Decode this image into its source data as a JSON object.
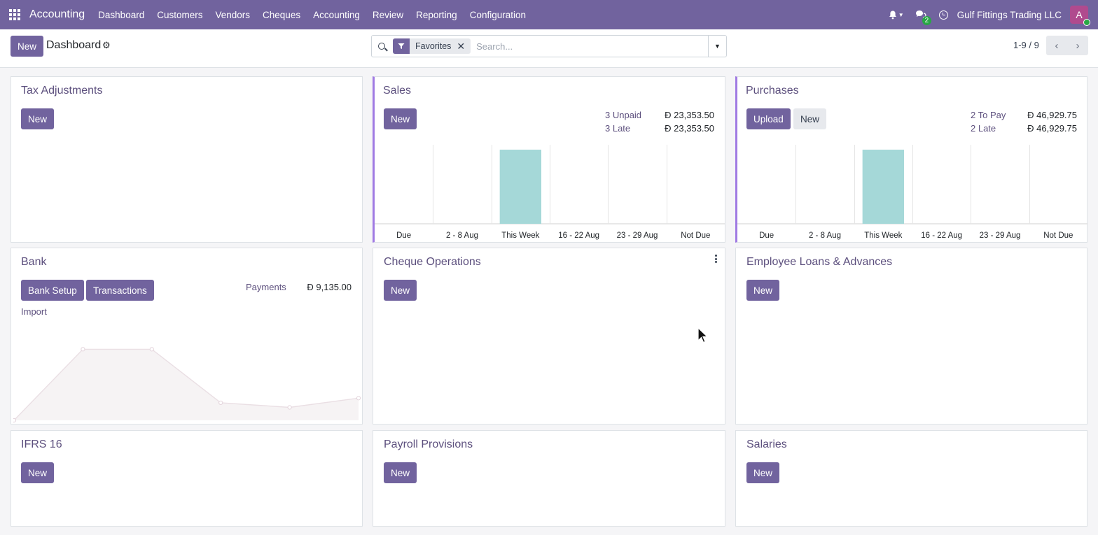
{
  "navbar": {
    "brand": "Accounting",
    "menu": [
      "Dashboard",
      "Customers",
      "Vendors",
      "Cheques",
      "Accounting",
      "Review",
      "Reporting",
      "Configuration"
    ],
    "chat_count": "2",
    "company": "Gulf Fittings Trading LLC",
    "avatar_initial": "A"
  },
  "control_panel": {
    "new_label": "New",
    "title": "Dashboard",
    "search": {
      "facet": "Favorites",
      "placeholder": "Search..."
    },
    "pager": "1-9 / 9"
  },
  "cards": {
    "tax": {
      "title": "Tax Adjustments",
      "new_label": "New"
    },
    "sales": {
      "title": "Sales",
      "new_label": "New",
      "stats": [
        {
          "label": "3 Unpaid",
          "value": "Đ 23,353.50"
        },
        {
          "label": "3 Late",
          "value": "Đ 23,353.50"
        }
      ]
    },
    "purchases": {
      "title": "Purchases",
      "upload_label": "Upload",
      "new_label": "New",
      "stats": [
        {
          "label": "2 To Pay",
          "value": "Đ 46,929.75"
        },
        {
          "label": "2 Late",
          "value": "Đ 46,929.75"
        }
      ]
    },
    "bank": {
      "title": "Bank",
      "setup_label": "Bank Setup",
      "transactions_label": "Transactions",
      "import_label": "Import",
      "stats": [
        {
          "label": "Payments",
          "value": "Đ 9,135.00"
        }
      ]
    },
    "cheque": {
      "title": "Cheque Operations",
      "new_label": "New"
    },
    "loans": {
      "title": "Employee Loans & Advances",
      "new_label": "New"
    },
    "ifrs": {
      "title": "IFRS 16",
      "new_label": "New"
    },
    "payroll": {
      "title": "Payroll Provisions",
      "new_label": "New"
    },
    "salaries": {
      "title": "Salaries",
      "new_label": "New"
    }
  },
  "chart_data": [
    {
      "type": "bar",
      "categories": [
        "Due",
        "2 - 8 Aug",
        "This Week",
        "16 - 22 Aug",
        "23 - 29 Aug",
        "Not Due"
      ],
      "values": [
        0,
        0,
        23353.5,
        0,
        0,
        0
      ],
      "color": "#a5d8d8"
    },
    {
      "type": "bar",
      "categories": [
        "Due",
        "2 - 8 Aug",
        "This Week",
        "16 - 22 Aug",
        "23 - 29 Aug",
        "Not Due"
      ],
      "values": [
        0,
        0,
        46929.75,
        0,
        0,
        0
      ],
      "color": "#a5d8d8"
    },
    {
      "type": "area",
      "values": [
        0,
        0.77,
        0.77,
        0.19,
        0.14,
        0.24
      ],
      "color": "#f6f3f4"
    }
  ],
  "colors": {
    "brand": "#71639e",
    "accent": "#a07ae3",
    "title": "#5d507e"
  }
}
